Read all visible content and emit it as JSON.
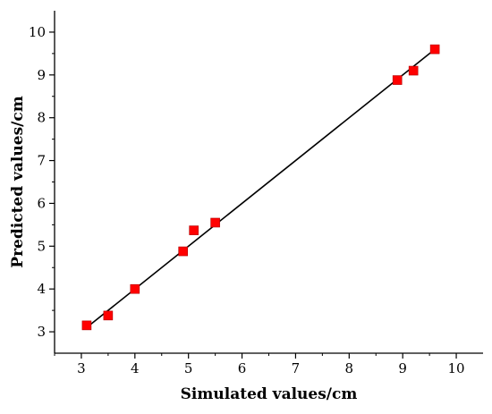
{
  "chart_data": {
    "type": "scatter",
    "title": "",
    "xlabel": "Simulated values/cm",
    "ylabel": "Predicted values/cm",
    "xlim": [
      2.5,
      10.5
    ],
    "ylim": [
      2.5,
      10.5
    ],
    "x_ticks": [
      "3",
      "4",
      "5",
      "6",
      "7",
      "8",
      "9",
      "10"
    ],
    "y_ticks": [
      "3",
      "4",
      "5",
      "6",
      "7",
      "8",
      "9",
      "10"
    ],
    "grid": false,
    "legend": "none",
    "colors": {
      "marker": "#ff0000",
      "fit_line": "#000000",
      "axes": "#000000"
    },
    "series": [
      {
        "points": [
          {
            "x": 3.1,
            "y": 3.15
          },
          {
            "x": 3.5,
            "y": 3.38
          },
          {
            "x": 4.0,
            "y": 4.0
          },
          {
            "x": 4.9,
            "y": 4.88
          },
          {
            "x": 5.1,
            "y": 5.37
          },
          {
            "x": 5.5,
            "y": 5.55
          },
          {
            "x": 8.9,
            "y": 8.88
          },
          {
            "x": 9.2,
            "y": 9.1
          },
          {
            "x": 9.6,
            "y": 9.6
          }
        ]
      }
    ],
    "fit_line": {
      "x": [
        3.1,
        9.6
      ],
      "y": [
        3.1,
        9.6
      ]
    }
  }
}
